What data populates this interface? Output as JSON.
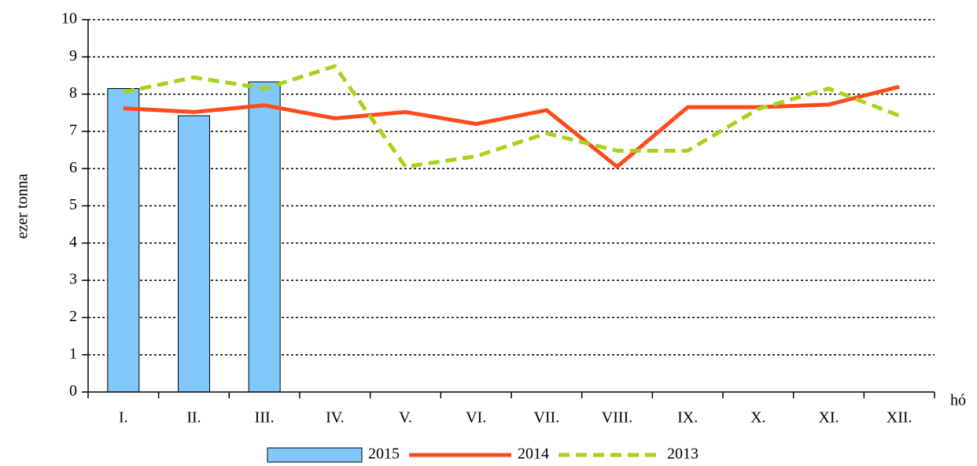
{
  "chart_data": {
    "type": "combo",
    "ylabel": "ezer tonna",
    "xlabel": "hó",
    "categories": [
      "I.",
      "II.",
      "III.",
      "IV.",
      "V.",
      "VI.",
      "VII.",
      "VIII.",
      "IX.",
      "X.",
      "XI.",
      "XII."
    ],
    "series": [
      {
        "name": "2015",
        "type": "bar",
        "color": "#80c8fc",
        "values": [
          8.15,
          7.42,
          8.33,
          null,
          null,
          null,
          null,
          null,
          null,
          null,
          null,
          null
        ]
      },
      {
        "name": "2014",
        "type": "line",
        "color": "#ff4b1c",
        "dashed": false,
        "values": [
          7.62,
          7.52,
          7.7,
          7.35,
          7.52,
          7.2,
          7.57,
          6.05,
          7.65,
          7.65,
          7.72,
          8.2
        ]
      },
      {
        "name": "2013",
        "type": "line",
        "color": "#a8d21c",
        "dashed": true,
        "values": [
          8.05,
          8.45,
          8.15,
          8.75,
          6.05,
          6.33,
          6.95,
          6.48,
          6.48,
          7.6,
          8.15,
          7.42
        ]
      }
    ],
    "ylim": [
      0,
      10
    ],
    "yticks": [
      0,
      1,
      2,
      3,
      4,
      5,
      6,
      7,
      8,
      9,
      10
    ],
    "grid": true,
    "legend": "bottom"
  }
}
